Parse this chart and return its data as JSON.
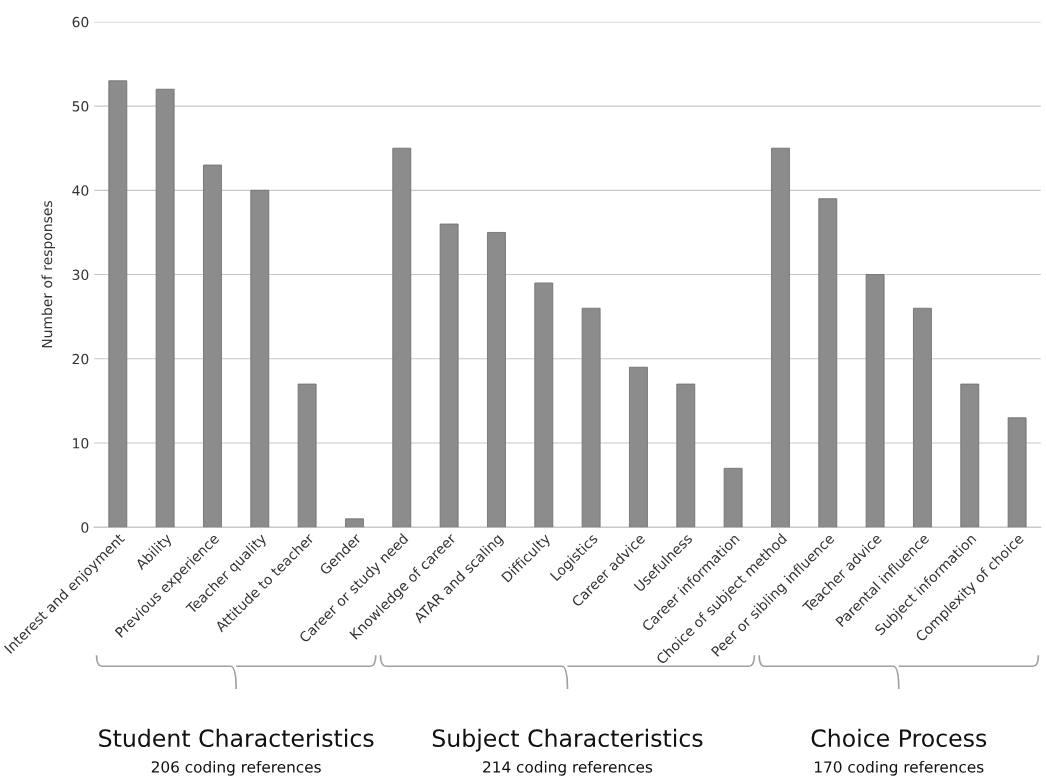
{
  "chart_data": {
    "type": "bar",
    "ylabel": "Number of responses",
    "categories": [
      "Interest and enjoyment",
      "Ability",
      "Previous experience",
      "Teacher quality",
      "Attitude to teacher",
      "Gender",
      "Career or study need",
      "Knowledge of career",
      "ATAR and scaling",
      "Difficulty",
      "Logistics",
      "Career advice",
      "Usefulness",
      "Career information",
      "Choice of subject method",
      "Peer or sibling influence",
      "Teacher advice",
      "Parental influence",
      "Subject information",
      "Complexity of choice"
    ],
    "values": [
      53,
      52,
      43,
      40,
      17,
      1,
      45,
      36,
      35,
      29,
      26,
      19,
      17,
      7,
      45,
      39,
      30,
      26,
      17,
      13
    ],
    "color": "#8c8c8c",
    "ylim": [
      0,
      60
    ],
    "yticks": [
      0,
      10,
      20,
      30,
      40,
      50,
      60
    ],
    "grid": "y",
    "annotations": [
      "Student Characteristics",
      "206 coding references",
      "Subject Characteristics",
      "214 coding references",
      "Choice Process",
      "170 coding references"
    ]
  }
}
